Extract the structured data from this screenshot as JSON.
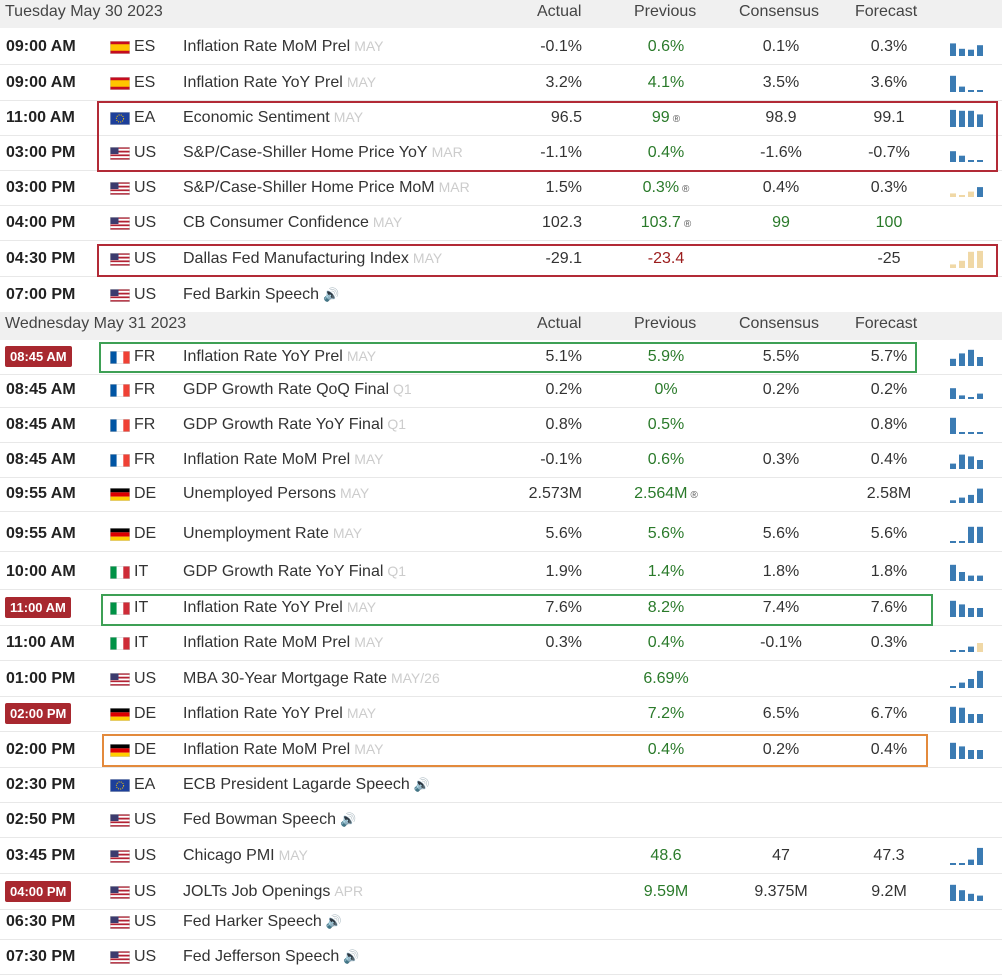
{
  "columns": {
    "actual": "Actual",
    "previous": "Previous",
    "consensus": "Consensus",
    "forecast": "Forecast"
  },
  "days": [
    {
      "title": "Tuesday May 30 2023",
      "rows": [
        {
          "time": "09:00 AM",
          "flag": "es",
          "ccy": "ES",
          "event": "Inflation Rate MoM Prel",
          "ref": "MAY",
          "actual": "-0.1%",
          "previous": "0.6%",
          "consensus": "0.1%",
          "forecast": "0.3%",
          "spark": [
            0.7,
            0.4,
            0.35,
            0.6
          ],
          "spark_color": "blue"
        },
        {
          "time": "09:00 AM",
          "flag": "es",
          "ccy": "ES",
          "event": "Inflation Rate YoY Prel",
          "ref": "MAY",
          "actual": "3.2%",
          "previous": "4.1%",
          "consensus": "3.5%",
          "forecast": "3.6%",
          "spark": [
            0.9,
            0.3,
            0.05,
            0.05
          ],
          "spark_color": "blue"
        },
        {
          "time": "11:00 AM",
          "flag": "eu",
          "ccy": "EA",
          "event": "Economic Sentiment",
          "ref": "MAY",
          "actual": "96.5",
          "previous": "99",
          "prev_revised": true,
          "consensus": "98.9",
          "forecast": "99.1",
          "spark": [
            0.95,
            0.9,
            0.9,
            0.7
          ],
          "spark_color": "blue"
        },
        {
          "time": "03:00 PM",
          "flag": "us",
          "ccy": "US",
          "event": "S&P/Case-Shiller Home Price YoY",
          "ref": "MAR",
          "actual": "-1.1%",
          "previous": "0.4%",
          "consensus": "-1.6%",
          "forecast": "-0.7%",
          "spark": [
            0.6,
            0.35,
            0.1,
            0.05
          ],
          "spark_color": "blue"
        },
        {
          "time": "03:00 PM",
          "flag": "us",
          "ccy": "US",
          "event": "S&P/Case-Shiller Home Price MoM",
          "ref": "MAR",
          "actual": "1.5%",
          "previous": "0.3%",
          "prev_revised": true,
          "consensus": "0.4%",
          "forecast": "0.3%",
          "spark": [
            0.2,
            0.1,
            0.3,
            0.55
          ],
          "spark_color": "mix"
        },
        {
          "time": "04:00 PM",
          "flag": "us",
          "ccy": "US",
          "event": "CB Consumer Confidence",
          "ref": "MAY",
          "actual": "102.3",
          "previous": "103.7",
          "prev_revised": true,
          "consensus": "99",
          "forecast": "100",
          "cons_green": true,
          "fcst_green": true,
          "spark": [],
          "spark_color": "none"
        },
        {
          "time": "04:30 PM",
          "flag": "us",
          "ccy": "US",
          "event": "Dallas Fed Manufacturing Index",
          "ref": "MAY",
          "actual": "-29.1",
          "previous": "-23.4",
          "prev_neg": true,
          "consensus": "",
          "forecast": "-25",
          "spark": [
            0.2,
            0.4,
            0.9,
            0.95
          ],
          "spark_color": "tan"
        },
        {
          "time": "07:00 PM",
          "flag": "us",
          "ccy": "US",
          "event": "Fed Barkin Speech",
          "ref": "",
          "speech": true,
          "actual": "",
          "previous": "",
          "consensus": "",
          "forecast": "",
          "spark": [],
          "spark_color": "none"
        }
      ]
    },
    {
      "title": "Wednesday May 31 2023",
      "rows": [
        {
          "time": "08:45 AM",
          "time_badge": true,
          "flag": "fr",
          "ccy": "FR",
          "event": "Inflation Rate YoY Prel",
          "ref": "MAY",
          "actual": "5.1%",
          "previous": "5.9%",
          "consensus": "5.5%",
          "forecast": "5.7%",
          "spark": [
            0.4,
            0.7,
            0.9,
            0.5
          ],
          "spark_color": "blue"
        },
        {
          "time": "08:45 AM",
          "flag": "fr",
          "ccy": "FR",
          "event": "GDP Growth Rate QoQ Final",
          "ref": "Q1",
          "actual": "0.2%",
          "previous": "0%",
          "consensus": "0.2%",
          "forecast": "0.2%",
          "spark": [
            0.6,
            0.2,
            0,
            0.3
          ],
          "spark_color": "blue"
        },
        {
          "time": "08:45 AM",
          "flag": "fr",
          "ccy": "FR",
          "event": "GDP Growth Rate YoY Final",
          "ref": "Q1",
          "actual": "0.8%",
          "previous": "0.5%",
          "consensus": "",
          "forecast": "0.8%",
          "spark": [
            0.9,
            0.05,
            0.05,
            0.05
          ],
          "spark_color": "blue"
        },
        {
          "time": "08:45 AM",
          "flag": "fr",
          "ccy": "FR",
          "event": "Inflation Rate MoM Prel",
          "ref": "MAY",
          "actual": "-0.1%",
          "previous": "0.6%",
          "consensus": "0.3%",
          "forecast": "0.4%",
          "spark": [
            0.3,
            0.8,
            0.7,
            0.5
          ],
          "spark_color": "blue"
        },
        {
          "time": "09:55 AM",
          "flag": "de",
          "ccy": "DE",
          "event": "Unemployed Persons",
          "ref": "MAY",
          "actual": "2.573M",
          "previous": "2.564M",
          "prev_revised": true,
          "consensus": "",
          "forecast": "2.58M",
          "spark": [
            0.15,
            0.3,
            0.45,
            0.8
          ],
          "spark_color": "blue"
        },
        {
          "time": "09:55 AM",
          "flag": "de",
          "ccy": "DE",
          "event": "Unemployment Rate",
          "ref": "MAY",
          "actual": "5.6%",
          "previous": "5.6%",
          "consensus": "5.6%",
          "forecast": "5.6%",
          "spark": [
            0.1,
            0.1,
            0.9,
            0.9
          ],
          "spark_color": "blue"
        },
        {
          "time": "10:00 AM",
          "flag": "it",
          "ccy": "IT",
          "event": "GDP Growth Rate YoY Final",
          "ref": "Q1",
          "actual": "1.9%",
          "previous": "1.4%",
          "consensus": "1.8%",
          "forecast": "1.8%",
          "spark": [
            0.9,
            0.5,
            0.3,
            0.3
          ],
          "spark_color": "blue"
        },
        {
          "time": "11:00 AM",
          "time_badge": true,
          "flag": "it",
          "ccy": "IT",
          "event": "Inflation Rate YoY Prel",
          "ref": "MAY",
          "actual": "7.6%",
          "previous": "8.2%",
          "consensus": "7.4%",
          "forecast": "7.6%",
          "spark": [
            0.9,
            0.7,
            0.5,
            0.5
          ],
          "spark_color": "blue"
        },
        {
          "time": "11:00 AM",
          "flag": "it",
          "ccy": "IT",
          "event": "Inflation Rate MoM Prel",
          "ref": "MAY",
          "actual": "0.3%",
          "previous": "0.4%",
          "consensus": "-0.1%",
          "forecast": "0.3%",
          "spark": [
            0.1,
            0.1,
            0.3,
            0.5
          ],
          "spark_color": "mix2"
        },
        {
          "time": "01:00 PM",
          "flag": "us",
          "ccy": "US",
          "event": "MBA 30-Year Mortgage Rate",
          "ref": "MAY/26",
          "actual": "",
          "previous": "6.69%",
          "consensus": "",
          "forecast": "",
          "spark": [
            0.1,
            0.3,
            0.5,
            0.95
          ],
          "spark_color": "blue"
        },
        {
          "time": "02:00 PM",
          "time_badge": true,
          "flag": "de",
          "ccy": "DE",
          "event": "Inflation Rate YoY Prel",
          "ref": "MAY",
          "actual": "",
          "previous": "7.2%",
          "consensus": "6.5%",
          "forecast": "6.7%",
          "spark": [
            0.9,
            0.85,
            0.5,
            0.5
          ],
          "spark_color": "blue"
        },
        {
          "time": "02:00 PM",
          "flag": "de",
          "ccy": "DE",
          "event": "Inflation Rate MoM Prel",
          "ref": "MAY",
          "actual": "",
          "previous": "0.4%",
          "consensus": "0.2%",
          "forecast": "0.4%",
          "spark": [
            0.9,
            0.7,
            0.5,
            0.5
          ],
          "spark_color": "blue"
        },
        {
          "time": "02:30 PM",
          "flag": "eu",
          "ccy": "EA",
          "event": "ECB President Lagarde Speech",
          "ref": "",
          "speech": true,
          "actual": "",
          "previous": "",
          "consensus": "",
          "forecast": "",
          "spark": [],
          "spark_color": "none"
        },
        {
          "time": "02:50 PM",
          "flag": "us",
          "ccy": "US",
          "event": "Fed Bowman Speech",
          "ref": "",
          "speech": true,
          "actual": "",
          "previous": "",
          "consensus": "",
          "forecast": "",
          "spark": [],
          "spark_color": "none"
        },
        {
          "time": "03:45 PM",
          "flag": "us",
          "ccy": "US",
          "event": "Chicago PMI",
          "ref": "MAY",
          "actual": "",
          "previous": "48.6",
          "consensus": "47",
          "forecast": "47.3",
          "spark": [
            0.05,
            0.05,
            0.3,
            0.95
          ],
          "spark_color": "blue"
        },
        {
          "time": "04:00 PM",
          "time_badge": true,
          "flag": "us",
          "ccy": "US",
          "event": "JOLTs Job Openings",
          "ref": "APR",
          "actual": "",
          "previous": "9.59M",
          "consensus": "9.375M",
          "forecast": "9.2M",
          "spark": [
            0.9,
            0.6,
            0.4,
            0.3
          ],
          "spark_color": "blue"
        },
        {
          "time": "06:30 PM",
          "flag": "us",
          "ccy": "US",
          "event": "Fed Harker Speech",
          "ref": "",
          "speech": true,
          "actual": "",
          "previous": "",
          "consensus": "",
          "forecast": "",
          "spark": [],
          "spark_color": "none"
        },
        {
          "time": "07:30 PM",
          "flag": "us",
          "ccy": "US",
          "event": "Fed Jefferson Speech",
          "ref": "",
          "speech": true,
          "actual": "",
          "previous": "",
          "consensus": "",
          "forecast": "",
          "spark": [],
          "spark_color": "none"
        }
      ]
    }
  ],
  "colors": {
    "bar_blue": "#3b7bb3",
    "bar_tan": "#f0d8a6",
    "badge_red": "#a8282f",
    "previous_green": "#2a7a2a",
    "previous_red": "#9b1c1c",
    "highlight_red": "#b22a36",
    "highlight_green": "#3ea055",
    "highlight_orange": "#e38a3c"
  },
  "icons": {
    "speech": "speaker-icon",
    "flags": [
      "spain-flag-icon",
      "eu-flag-icon",
      "us-flag-icon",
      "france-flag-icon",
      "germany-flag-icon",
      "italy-flag-icon"
    ],
    "revised": "revised-icon"
  }
}
